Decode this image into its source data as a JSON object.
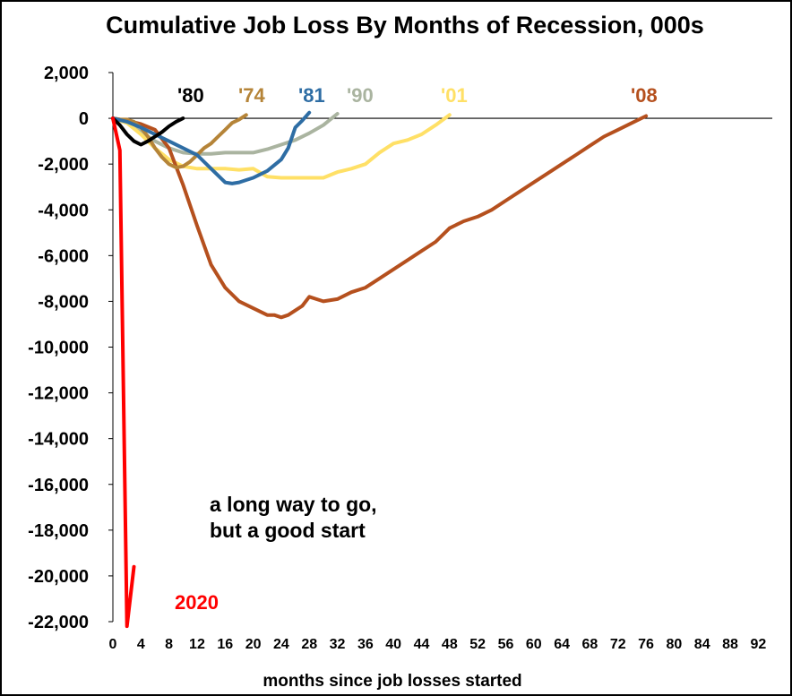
{
  "chart_data": {
    "type": "line",
    "title": "Cumulative Job Loss By Months of Recession, 000s",
    "xlabel": "months since job losses started",
    "ylabel": "",
    "xlim": [
      0,
      94
    ],
    "ylim": [
      -22000,
      2000
    ],
    "x_ticks": [
      0,
      4,
      8,
      12,
      16,
      20,
      24,
      28,
      32,
      36,
      40,
      44,
      48,
      52,
      56,
      60,
      64,
      68,
      72,
      76,
      80,
      84,
      88,
      92
    ],
    "y_ticks": [
      2000,
      0,
      -2000,
      -4000,
      -6000,
      -8000,
      -10000,
      -12000,
      -14000,
      -16000,
      -18000,
      -20000,
      -22000
    ],
    "y_tick_labels": [
      "2,000",
      "0",
      "-2,000",
      "-4,000",
      "-6,000",
      "-8,000",
      "-10,000",
      "-12,000",
      "-14,000",
      "-16,000",
      "-18,000",
      "-20,000",
      "-22,000"
    ],
    "annotation": [
      "a long way to go,",
      "but a good start"
    ],
    "series": [
      {
        "name": "'80",
        "label": "'80",
        "color": "#000000",
        "x": [
          0,
          1,
          2,
          3,
          4,
          5,
          6,
          7,
          8,
          9,
          10
        ],
        "y": [
          0,
          -300,
          -700,
          -1000,
          -1150,
          -1000,
          -800,
          -600,
          -350,
          -150,
          0
        ]
      },
      {
        "name": "'74",
        "label": "'74",
        "color": "#B58438",
        "x": [
          0,
          1,
          2,
          3,
          4,
          5,
          6,
          7,
          8,
          9,
          10,
          11,
          12,
          13,
          14,
          15,
          16,
          17,
          18,
          19
        ],
        "y": [
          0,
          -50,
          -50,
          -150,
          -400,
          -800,
          -1300,
          -1700,
          -2000,
          -2150,
          -2100,
          -1900,
          -1600,
          -1300,
          -1100,
          -800,
          -500,
          -200,
          -50,
          150
        ]
      },
      {
        "name": "'81",
        "label": "'81",
        "color": "#2E6DA4",
        "x": [
          0,
          2,
          4,
          6,
          8,
          10,
          12,
          14,
          16,
          17,
          18,
          19,
          20,
          22,
          24,
          25,
          26,
          27,
          28
        ],
        "y": [
          0,
          -150,
          -400,
          -700,
          -1000,
          -1300,
          -1600,
          -2200,
          -2800,
          -2850,
          -2800,
          -2700,
          -2600,
          -2300,
          -1800,
          -1300,
          -400,
          -100,
          250
        ]
      },
      {
        "name": "'90",
        "label": "'90",
        "color": "#AAB4A0",
        "x": [
          0,
          2,
          4,
          6,
          8,
          10,
          12,
          14,
          16,
          18,
          20,
          22,
          24,
          26,
          28,
          30,
          32
        ],
        "y": [
          0,
          -200,
          -600,
          -1000,
          -1300,
          -1500,
          -1550,
          -1550,
          -1500,
          -1500,
          -1500,
          -1350,
          -1150,
          -950,
          -650,
          -300,
          200
        ]
      },
      {
        "name": "'01",
        "label": "'01",
        "color": "#FFE066",
        "x": [
          0,
          2,
          4,
          6,
          8,
          10,
          12,
          14,
          16,
          18,
          20,
          22,
          24,
          26,
          28,
          30,
          32,
          34,
          36,
          38,
          40,
          42,
          44,
          46,
          48
        ],
        "y": [
          0,
          -200,
          -700,
          -1300,
          -1800,
          -2100,
          -2200,
          -2200,
          -2200,
          -2250,
          -2200,
          -2550,
          -2600,
          -2600,
          -2600,
          -2600,
          -2350,
          -2200,
          -2000,
          -1500,
          -1100,
          -950,
          -700,
          -300,
          150
        ]
      },
      {
        "name": "'08",
        "label": "'08",
        "color": "#B5501E",
        "x": [
          0,
          2,
          4,
          6,
          8,
          10,
          12,
          14,
          16,
          18,
          20,
          22,
          23,
          24,
          25,
          26,
          27,
          28,
          29,
          30,
          32,
          34,
          36,
          38,
          40,
          42,
          44,
          46,
          48,
          50,
          52,
          54,
          56,
          58,
          60,
          62,
          64,
          66,
          68,
          70,
          72,
          74,
          76
        ],
        "y": [
          0,
          -100,
          -250,
          -500,
          -1300,
          -2900,
          -4700,
          -6400,
          -7400,
          -8000,
          -8300,
          -8600,
          -8600,
          -8700,
          -8600,
          -8400,
          -8200,
          -7800,
          -7900,
          -8000,
          -7900,
          -7600,
          -7400,
          -7000,
          -6600,
          -6200,
          -5800,
          -5400,
          -4800,
          -4500,
          -4300,
          -4000,
          -3600,
          -3200,
          -2800,
          -2400,
          -2000,
          -1600,
          -1200,
          -800,
          -500,
          -200,
          100
        ]
      },
      {
        "name": "2020",
        "label": "2020",
        "color": "#FF0000",
        "x": [
          0,
          1,
          2,
          3
        ],
        "y": [
          0,
          -1400,
          -22200,
          -19600
        ]
      }
    ]
  }
}
